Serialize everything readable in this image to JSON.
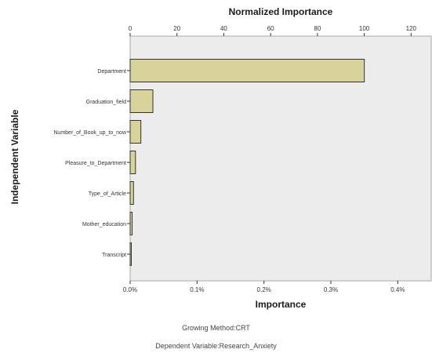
{
  "chart_data": {
    "type": "bar",
    "orientation": "horizontal",
    "categories": [
      "Department",
      "Graduation_field",
      "Number_of_Book_up_to_now",
      "Pleasure_to_Department",
      "Type_of_Article",
      "Mother_education",
      "Transcript"
    ],
    "values": [
      0.35,
      0.034,
      0.016,
      0.008,
      0.005,
      0.003,
      0.001
    ],
    "normalized_values": [
      100,
      9.7,
      4.6,
      2.3,
      1.4,
      0.9,
      0.3
    ],
    "xlabel": "Importance",
    "x2label": "Normalized Importance",
    "ylabel": "Independent Variable",
    "xlim": [
      0,
      0.45
    ],
    "x2lim": [
      0,
      128.6
    ],
    "xticks": [
      0,
      0.1,
      0.2,
      0.3,
      0.4
    ],
    "xtick_labels": [
      "0.0%",
      "0.1%",
      "0.2%",
      "0.3%",
      "0.4%"
    ],
    "x2ticks": [
      0,
      20,
      40,
      60,
      80,
      100,
      120
    ],
    "x2tick_labels": [
      "0",
      "20",
      "40",
      "60",
      "80",
      "100",
      "120"
    ],
    "bar_color": "#d8d29b",
    "plot_background": "#ececec",
    "grid": false,
    "legend": "none"
  },
  "footnotes": {
    "method": "Growing Method:CRT",
    "dependent": "Dependent Variable:Research_Anxiety"
  }
}
